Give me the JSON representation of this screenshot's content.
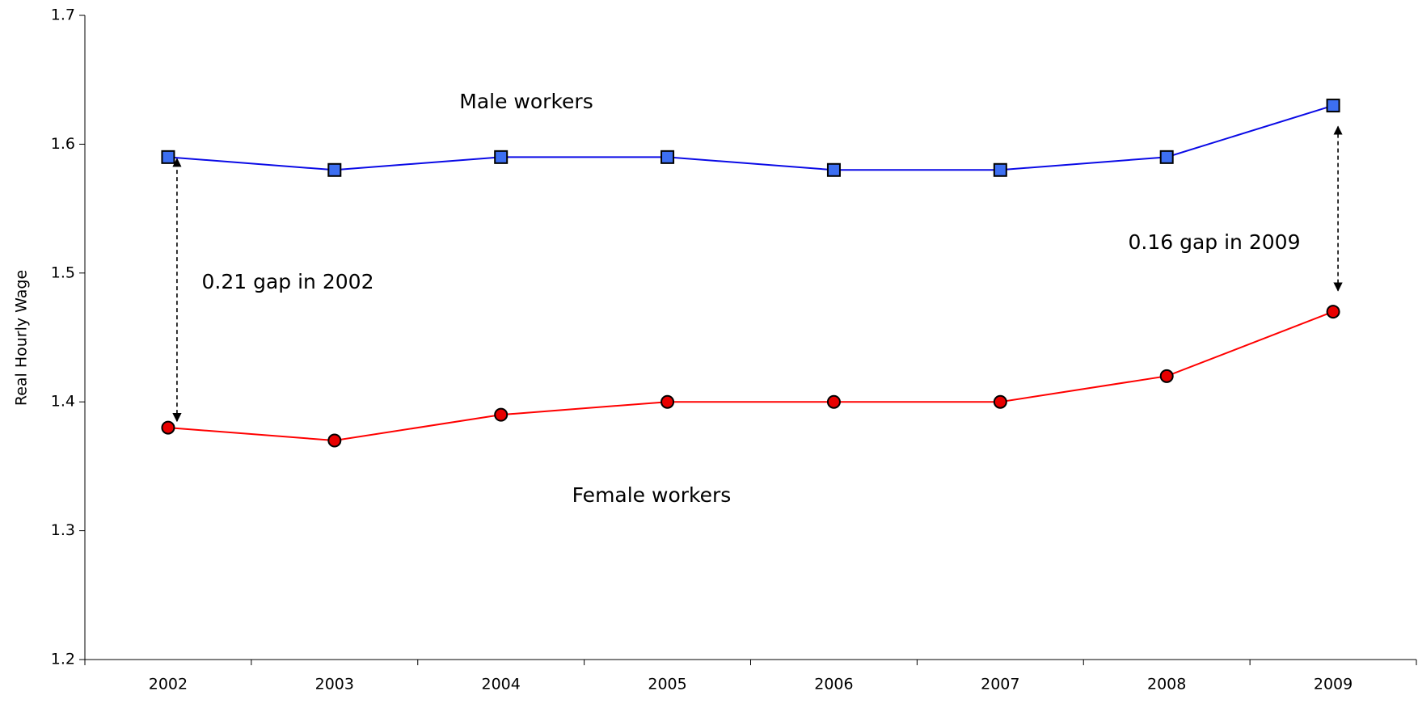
{
  "chart_data": {
    "type": "line",
    "y_label": "Real Hourly Wage",
    "categories": [
      "2002",
      "2003",
      "2004",
      "2005",
      "2006",
      "2007",
      "2008",
      "2009"
    ],
    "series": [
      {
        "name": "Male workers",
        "color": "#0a0ae6",
        "marker": "square",
        "marker_color": "#3d6ff2",
        "values": [
          1.59,
          1.58,
          1.59,
          1.59,
          1.58,
          1.58,
          1.59,
          1.63
        ]
      },
      {
        "name": "Female workers",
        "color": "#ff0000",
        "marker": "circle",
        "marker_color": "#e80000",
        "values": [
          1.38,
          1.37,
          1.39,
          1.4,
          1.4,
          1.4,
          1.42,
          1.47
        ]
      }
    ],
    "annotations": [
      "0.21 gap in 2002",
      "0.16 gap in 2009"
    ],
    "ylim": [
      1.2,
      1.7
    ],
    "yticks": [
      1.2,
      1.3,
      1.4,
      1.5,
      1.6,
      1.7
    ],
    "grid": false
  }
}
